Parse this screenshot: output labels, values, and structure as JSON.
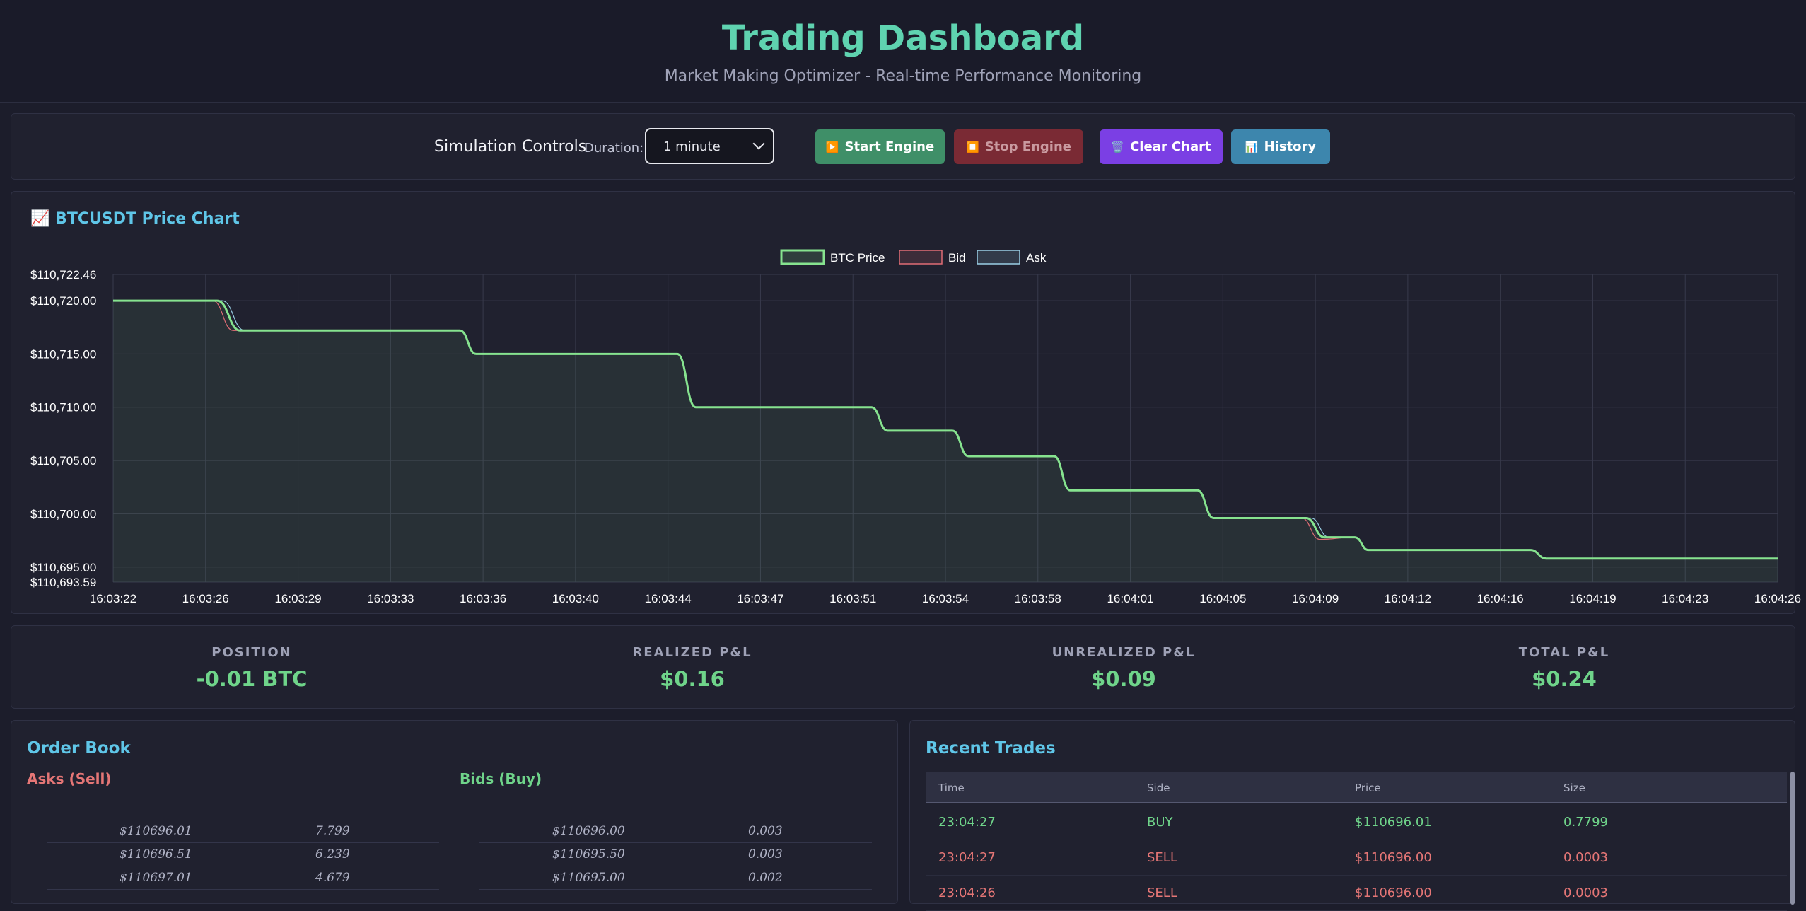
{
  "header": {
    "title": "Trading Dashboard",
    "subtitle": "Market Making Optimizer - Real-time Performance Monitoring"
  },
  "controls": {
    "title": "Simulation Controls",
    "duration_label": "Duration:",
    "duration_value": "1 minute",
    "start_icon": "▶️",
    "start_label": "Start Engine",
    "stop_icon": "⏹️",
    "stop_label": "Stop Engine",
    "clear_icon": "🗑️",
    "clear_label": "Clear Chart",
    "history_icon": "📊",
    "history_label": "History"
  },
  "chart": {
    "icon": "📈",
    "title": "BTCUSDT Price Chart"
  },
  "chart_data": {
    "type": "line",
    "title": "",
    "legend_position": "top-center",
    "grid": true,
    "y_ticks": [
      "$110,722.46",
      "$110,720.00",
      "$110,715.00",
      "$110,710.00",
      "$110,705.00",
      "$110,700.00",
      "$110,695.00",
      "$110,693.59"
    ],
    "y_tick_values": [
      110722.46,
      110720,
      110715,
      110710,
      110705,
      110700,
      110695,
      110693.59
    ],
    "ylim": [
      110693.59,
      110722.46
    ],
    "x_ticks": [
      "16:03:22",
      "16:03:26",
      "16:03:29",
      "16:03:33",
      "16:03:36",
      "16:03:40",
      "16:03:44",
      "16:03:47",
      "16:03:51",
      "16:03:54",
      "16:03:58",
      "16:04:01",
      "16:04:05",
      "16:04:09",
      "16:04:12",
      "16:04:16",
      "16:04:19",
      "16:04:23",
      "16:04:26"
    ],
    "x_range": [
      0,
      72
    ],
    "series": [
      {
        "name": "BTC Price",
        "color": "#86e38f",
        "points": [
          [
            0,
            110720.0
          ],
          [
            4.5,
            110720.0
          ],
          [
            5.5,
            110717.2
          ],
          [
            15,
            110717.2
          ],
          [
            15.7,
            110715.0
          ],
          [
            24.4,
            110715.0
          ],
          [
            25.2,
            110710.0
          ],
          [
            32.8,
            110710.0
          ],
          [
            33.5,
            110707.8
          ],
          [
            36.3,
            110707.8
          ],
          [
            37,
            110705.4
          ],
          [
            40.7,
            110705.4
          ],
          [
            41.4,
            110702.2
          ],
          [
            46.9,
            110702.2
          ],
          [
            47.6,
            110699.6
          ],
          [
            51.6,
            110699.6
          ],
          [
            52.4,
            110697.8
          ],
          [
            53.7,
            110697.8
          ],
          [
            54.3,
            110696.6
          ],
          [
            61.3,
            110696.6
          ],
          [
            62,
            110695.8
          ],
          [
            72,
            110695.8
          ]
        ]
      },
      {
        "name": "Bid",
        "color": "#e06c75",
        "points": [
          [
            0,
            110720.0
          ],
          [
            4.3,
            110720.0
          ],
          [
            5.2,
            110717.2
          ],
          [
            15,
            110717.2
          ],
          [
            15.7,
            110715.0
          ],
          [
            24.4,
            110715.0
          ],
          [
            25.2,
            110710.0
          ],
          [
            32.8,
            110710.0
          ],
          [
            33.5,
            110707.8
          ],
          [
            36.3,
            110707.8
          ],
          [
            37,
            110705.4
          ],
          [
            40.7,
            110705.4
          ],
          [
            41.4,
            110702.2
          ],
          [
            46.9,
            110702.2
          ],
          [
            47.6,
            110699.6
          ],
          [
            51.4,
            110699.6
          ],
          [
            52.2,
            110697.6
          ],
          [
            53.7,
            110697.8
          ],
          [
            54.3,
            110696.6
          ],
          [
            61.3,
            110696.6
          ],
          [
            62,
            110695.8
          ],
          [
            72,
            110695.8
          ]
        ]
      },
      {
        "name": "Ask",
        "color": "#9ad0e6",
        "points": [
          [
            0,
            110720.0
          ],
          [
            4.7,
            110720.0
          ],
          [
            5.7,
            110717.2
          ],
          [
            15,
            110717.2
          ],
          [
            15.7,
            110715.0
          ],
          [
            24.4,
            110715.0
          ],
          [
            25.2,
            110710.0
          ],
          [
            32.8,
            110710.0
          ],
          [
            33.5,
            110707.8
          ],
          [
            36.3,
            110707.8
          ],
          [
            37,
            110705.4
          ],
          [
            40.7,
            110705.4
          ],
          [
            41.4,
            110702.2
          ],
          [
            46.9,
            110702.2
          ],
          [
            47.6,
            110699.6
          ],
          [
            51.8,
            110699.6
          ],
          [
            52.6,
            110697.8
          ],
          [
            53.7,
            110697.8
          ],
          [
            54.3,
            110696.6
          ],
          [
            61.3,
            110696.6
          ],
          [
            62,
            110695.8
          ],
          [
            72,
            110695.8
          ]
        ]
      }
    ]
  },
  "stats": [
    {
      "label": "POSITION",
      "value": "-0.01 BTC"
    },
    {
      "label": "REALIZED P&L",
      "value": "$0.16"
    },
    {
      "label": "UNREALIZED P&L",
      "value": "$0.09"
    },
    {
      "label": "TOTAL P&L",
      "value": "$0.24"
    }
  ],
  "order_book": {
    "title": "Order Book",
    "asks_title": "Asks (Sell)",
    "bids_title": "Bids (Buy)",
    "asks": [
      {
        "price": "$110696.01",
        "size": "7.799"
      },
      {
        "price": "$110696.51",
        "size": "6.239"
      },
      {
        "price": "$110697.01",
        "size": "4.679"
      }
    ],
    "bids": [
      {
        "price": "$110696.00",
        "size": "0.003"
      },
      {
        "price": "$110695.50",
        "size": "0.003"
      },
      {
        "price": "$110695.00",
        "size": "0.002"
      }
    ]
  },
  "recent_trades": {
    "title": "Recent Trades",
    "columns": [
      "Time",
      "Side",
      "Price",
      "Size"
    ],
    "rows": [
      {
        "time": "23:04:27",
        "side": "BUY",
        "price": "$110696.01",
        "size": "0.7799"
      },
      {
        "time": "23:04:27",
        "side": "SELL",
        "price": "$110696.00",
        "size": "0.0003"
      },
      {
        "time": "23:04:26",
        "side": "SELL",
        "price": "$110696.00",
        "size": "0.0003"
      }
    ]
  },
  "colors": {
    "accent": "#5fd3b0",
    "buy": "#6fd48a",
    "sell": "#e57676",
    "section": "#5fc6e8"
  }
}
